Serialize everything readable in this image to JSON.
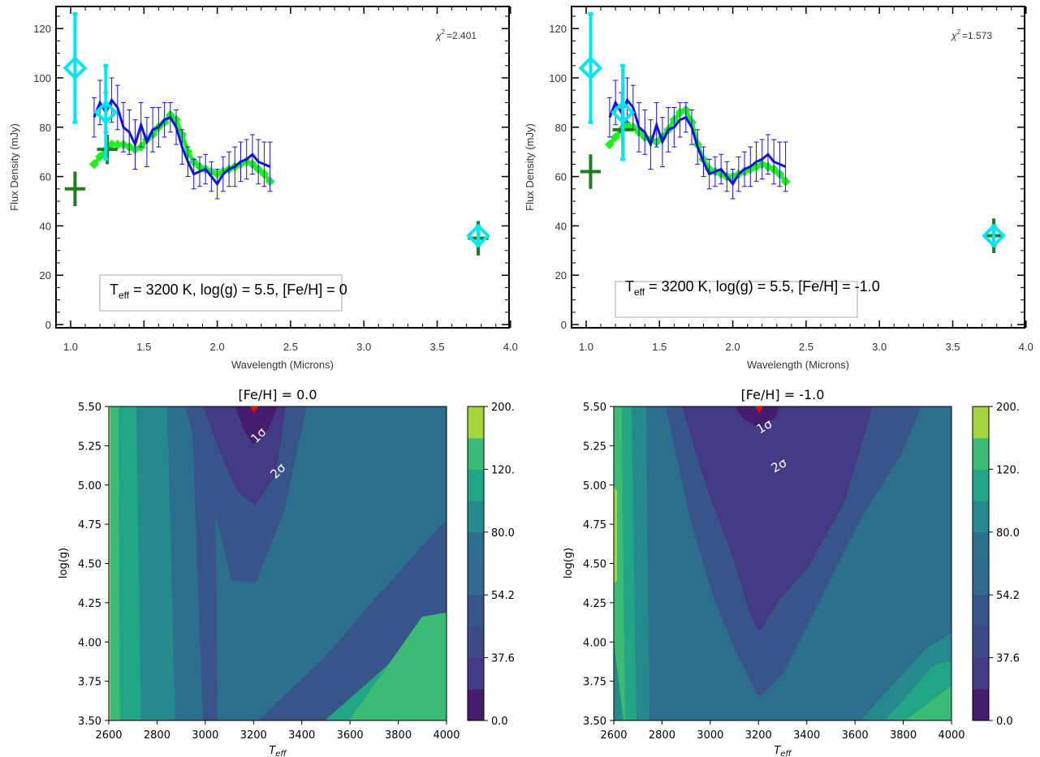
{
  "chart_data": [
    {
      "type": "scatter",
      "xlabel": "Wavelength (Microns)",
      "ylabel": "Flux Density (mJy)",
      "xlim": [
        0.9,
        4.0
      ],
      "ylim": [
        0,
        130
      ],
      "xticks": [
        "1.0",
        "1.5",
        "2.0",
        "2.5",
        "3.0",
        "3.5",
        "4.0"
      ],
      "yticks": [
        "0",
        "20",
        "40",
        "60",
        "80",
        "100",
        "120"
      ],
      "chi2_symbol": "χ",
      "chi2_exp": "2",
      "chi2_value": "=2.401",
      "label_T": "T",
      "label_sub": "eff",
      "label_rest": " = 3200 K, log(g) = 5.5, [Fe/H] = 0",
      "colors": {
        "spectrum": "#1414d2",
        "model": "#22ee22",
        "photometry": "#00e5ee",
        "synthetic": "#1e7b1e"
      },
      "spectrum": {
        "x": [
          1.16,
          1.2,
          1.24,
          1.28,
          1.32,
          1.36,
          1.4,
          1.44,
          1.48,
          1.52,
          1.56,
          1.6,
          1.64,
          1.68,
          1.72,
          1.76,
          1.8,
          1.84,
          1.88,
          1.92,
          1.96,
          2.0,
          2.04,
          2.08,
          2.12,
          2.16,
          2.2,
          2.24,
          2.28,
          2.32,
          2.36
        ],
        "y": [
          84,
          90,
          86,
          91,
          88,
          80,
          78,
          73,
          81,
          74,
          79,
          80,
          83,
          84,
          80,
          72,
          66,
          61,
          62,
          63,
          60,
          57,
          61,
          63,
          64,
          66,
          67,
          69,
          66,
          65,
          64
        ],
        "err": [
          8,
          9,
          8,
          9,
          9,
          10,
          9,
          10,
          9,
          10,
          9,
          8,
          7,
          6,
          7,
          7,
          6,
          6,
          6,
          6,
          6,
          6,
          7,
          7,
          8,
          8,
          8,
          8,
          9,
          9,
          10
        ]
      },
      "model": {
        "x": [
          1.16,
          1.2,
          1.24,
          1.28,
          1.32,
          1.36,
          1.4,
          1.44,
          1.48,
          1.52,
          1.56,
          1.6,
          1.64,
          1.68,
          1.72,
          1.76,
          1.8,
          1.84,
          1.88,
          1.92,
          1.96,
          2.0,
          2.04,
          2.08,
          2.12,
          2.16,
          2.2,
          2.24,
          2.28,
          2.32,
          2.36
        ],
        "y": [
          65,
          68,
          71,
          73,
          73,
          73,
          72,
          71,
          72,
          75,
          77,
          80,
          82,
          85,
          83,
          77,
          70,
          66,
          64,
          63,
          62,
          61,
          62,
          63,
          64,
          65,
          66,
          65,
          63,
          61,
          58
        ]
      },
      "photometry": [
        {
          "x": 1.03,
          "y": 104,
          "err": 22
        },
        {
          "x": 1.24,
          "y": 86,
          "err": 19
        },
        {
          "x": 3.78,
          "y": 36,
          "err": 4
        }
      ],
      "synthetic": [
        {
          "x": 1.03,
          "y": 55,
          "xerr": 0.07,
          "yerr": 7
        },
        {
          "x": 1.25,
          "y": 71,
          "xerr": 0.07,
          "yerr": 6
        },
        {
          "x": 3.78,
          "y": 35,
          "xerr": 0.07,
          "yerr": 7
        }
      ]
    },
    {
      "type": "scatter",
      "xlabel": "Wavelength (Microns)",
      "ylabel": "Flux Density (mJy)",
      "xlim": [
        0.9,
        4.0
      ],
      "ylim": [
        0,
        130
      ],
      "xticks": [
        "1.0",
        "1.5",
        "2.0",
        "2.5",
        "3.0",
        "3.5",
        "4.0"
      ],
      "yticks": [
        "0",
        "20",
        "40",
        "60",
        "80",
        "100",
        "120"
      ],
      "chi2_symbol": "χ",
      "chi2_exp": "2",
      "chi2_value": "=1.573",
      "label_T": "T",
      "label_sub": "eff",
      "label_rest": " = 3200 K, log(g) = 5.5, [Fe/H] = -1.0",
      "colors": {
        "spectrum": "#1414d2",
        "model": "#22ee22",
        "photometry": "#00e5ee",
        "synthetic": "#1e7b1e"
      },
      "spectrum": {
        "x": [
          1.16,
          1.2,
          1.24,
          1.28,
          1.32,
          1.36,
          1.4,
          1.44,
          1.48,
          1.52,
          1.56,
          1.6,
          1.64,
          1.68,
          1.72,
          1.76,
          1.8,
          1.84,
          1.88,
          1.92,
          1.96,
          2.0,
          2.04,
          2.08,
          2.12,
          2.16,
          2.2,
          2.24,
          2.28,
          2.32,
          2.36
        ],
        "y": [
          84,
          90,
          86,
          91,
          88,
          80,
          78,
          73,
          81,
          74,
          79,
          80,
          83,
          84,
          80,
          72,
          66,
          61,
          62,
          63,
          60,
          57,
          61,
          63,
          64,
          66,
          67,
          69,
          66,
          65,
          64
        ],
        "err": [
          8,
          9,
          8,
          9,
          9,
          10,
          9,
          10,
          9,
          10,
          9,
          8,
          7,
          6,
          7,
          7,
          6,
          6,
          6,
          6,
          6,
          6,
          7,
          7,
          8,
          8,
          8,
          8,
          9,
          9,
          10
        ]
      },
      "model": {
        "x": [
          1.16,
          1.2,
          1.24,
          1.28,
          1.32,
          1.36,
          1.4,
          1.44,
          1.48,
          1.52,
          1.56,
          1.6,
          1.64,
          1.68,
          1.72,
          1.76,
          1.8,
          1.84,
          1.88,
          1.92,
          1.96,
          2.0,
          2.04,
          2.08,
          2.12,
          2.16,
          2.2,
          2.24,
          2.28,
          2.32,
          2.36
        ],
        "y": [
          73,
          76,
          79,
          81,
          80,
          78,
          76,
          75,
          74,
          76,
          79,
          83,
          86,
          87,
          82,
          73,
          67,
          63,
          62,
          61,
          60,
          60,
          61,
          62,
          63,
          64,
          65,
          64,
          63,
          61,
          58
        ]
      },
      "photometry": [
        {
          "x": 1.03,
          "y": 104,
          "err": 22
        },
        {
          "x": 1.25,
          "y": 86,
          "err": 19
        },
        {
          "x": 3.78,
          "y": 36,
          "err": 4
        }
      ],
      "synthetic": [
        {
          "x": 1.03,
          "y": 62,
          "xerr": 0.07,
          "yerr": 7
        },
        {
          "x": 1.25,
          "y": 79,
          "xerr": 0.07,
          "yerr": 6
        },
        {
          "x": 3.78,
          "y": 36,
          "xerr": 0.07,
          "yerr": 7
        }
      ]
    },
    {
      "type": "heatmap",
      "title": "[Fe/H] = 0.0",
      "xlabel_main": "T",
      "xlabel_sub": "eff",
      "ylabel": "log(g)",
      "xlim": [
        2600,
        4000
      ],
      "ylim": [
        3.5,
        5.5
      ],
      "xticks": [
        "2600",
        "2800",
        "3000",
        "3200",
        "3400",
        "3600",
        "3800",
        "4000"
      ],
      "yticks": [
        "3.50",
        "3.75",
        "4.00",
        "4.25",
        "4.50",
        "4.75",
        "5.00",
        "5.25",
        "5.50"
      ],
      "cbar_ticks": [
        "0.0",
        "37.6",
        "54.2",
        "80.0",
        "120.",
        "200."
      ],
      "levels": [
        "#461c6e",
        "#433a83",
        "#38558a",
        "#2d6e8e",
        "#258a8c",
        "#22a584",
        "#3cbb75",
        "#a6d63f"
      ],
      "best_fit": {
        "teff": 3200,
        "logg": 5.5
      },
      "contour_labels": [
        "1σ",
        "2σ"
      ],
      "contour_shape": "contours of chi-squared over Teff and log(g)"
    },
    {
      "type": "heatmap",
      "title": "[Fe/H] = -1.0",
      "xlabel_main": "T",
      "xlabel_sub": "eff",
      "ylabel": "log(g)",
      "xlim": [
        2600,
        4000
      ],
      "ylim": [
        3.5,
        5.5
      ],
      "xticks": [
        "2600",
        "2800",
        "3000",
        "3200",
        "3400",
        "3600",
        "3800",
        "4000"
      ],
      "yticks": [
        "3.50",
        "3.75",
        "4.00",
        "4.25",
        "4.50",
        "4.75",
        "5.00",
        "5.25",
        "5.50"
      ],
      "cbar_ticks": [
        "0.0",
        "37.6",
        "54.2",
        "80.0",
        "120.",
        "200."
      ],
      "levels": [
        "#461c6e",
        "#433a83",
        "#38558a",
        "#2d6e8e",
        "#258a8c",
        "#22a584",
        "#3cbb75",
        "#a6d63f"
      ],
      "best_fit": {
        "teff": 3200,
        "logg": 5.5
      },
      "contour_labels": [
        "1σ",
        "2σ"
      ],
      "contour_shape": "contours of chi-squared over Teff and log(g)"
    }
  ]
}
